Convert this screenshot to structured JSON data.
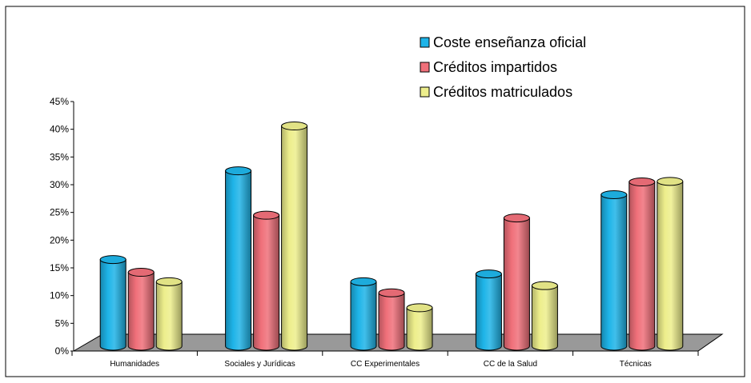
{
  "chart_data": {
    "type": "bar",
    "categories": [
      "Humanidades",
      "Sociales y Jurídicas",
      "CC Experimentales",
      "CC de la Salud",
      "Técnicas"
    ],
    "series": [
      {
        "name": "Coste enseñanza oficial",
        "values": [
          16.5,
          32.5,
          12.5,
          13.9,
          28.2
        ],
        "color": "#1EB4E8"
      },
      {
        "name": "Créditos impartidos",
        "values": [
          14.2,
          24.5,
          10.5,
          24.0,
          30.5
        ],
        "color": "#F0707A"
      },
      {
        "name": "Créditos matriculados",
        "values": [
          12.5,
          40.6,
          7.8,
          11.8,
          30.6
        ],
        "color": "#EDEE8C"
      }
    ],
    "ylim": [
      0,
      45
    ],
    "yticks": [
      0,
      5,
      10,
      15,
      20,
      25,
      30,
      35,
      40,
      45
    ],
    "ytick_labels": [
      "0%",
      "5%",
      "10%",
      "15%",
      "20%",
      "25%",
      "30%",
      "35%",
      "40%",
      "45%"
    ],
    "title": "",
    "xlabel": "",
    "ylabel": "",
    "legend_position": "top-right",
    "style": "3d-cylinder",
    "floor_color": "#999999"
  }
}
